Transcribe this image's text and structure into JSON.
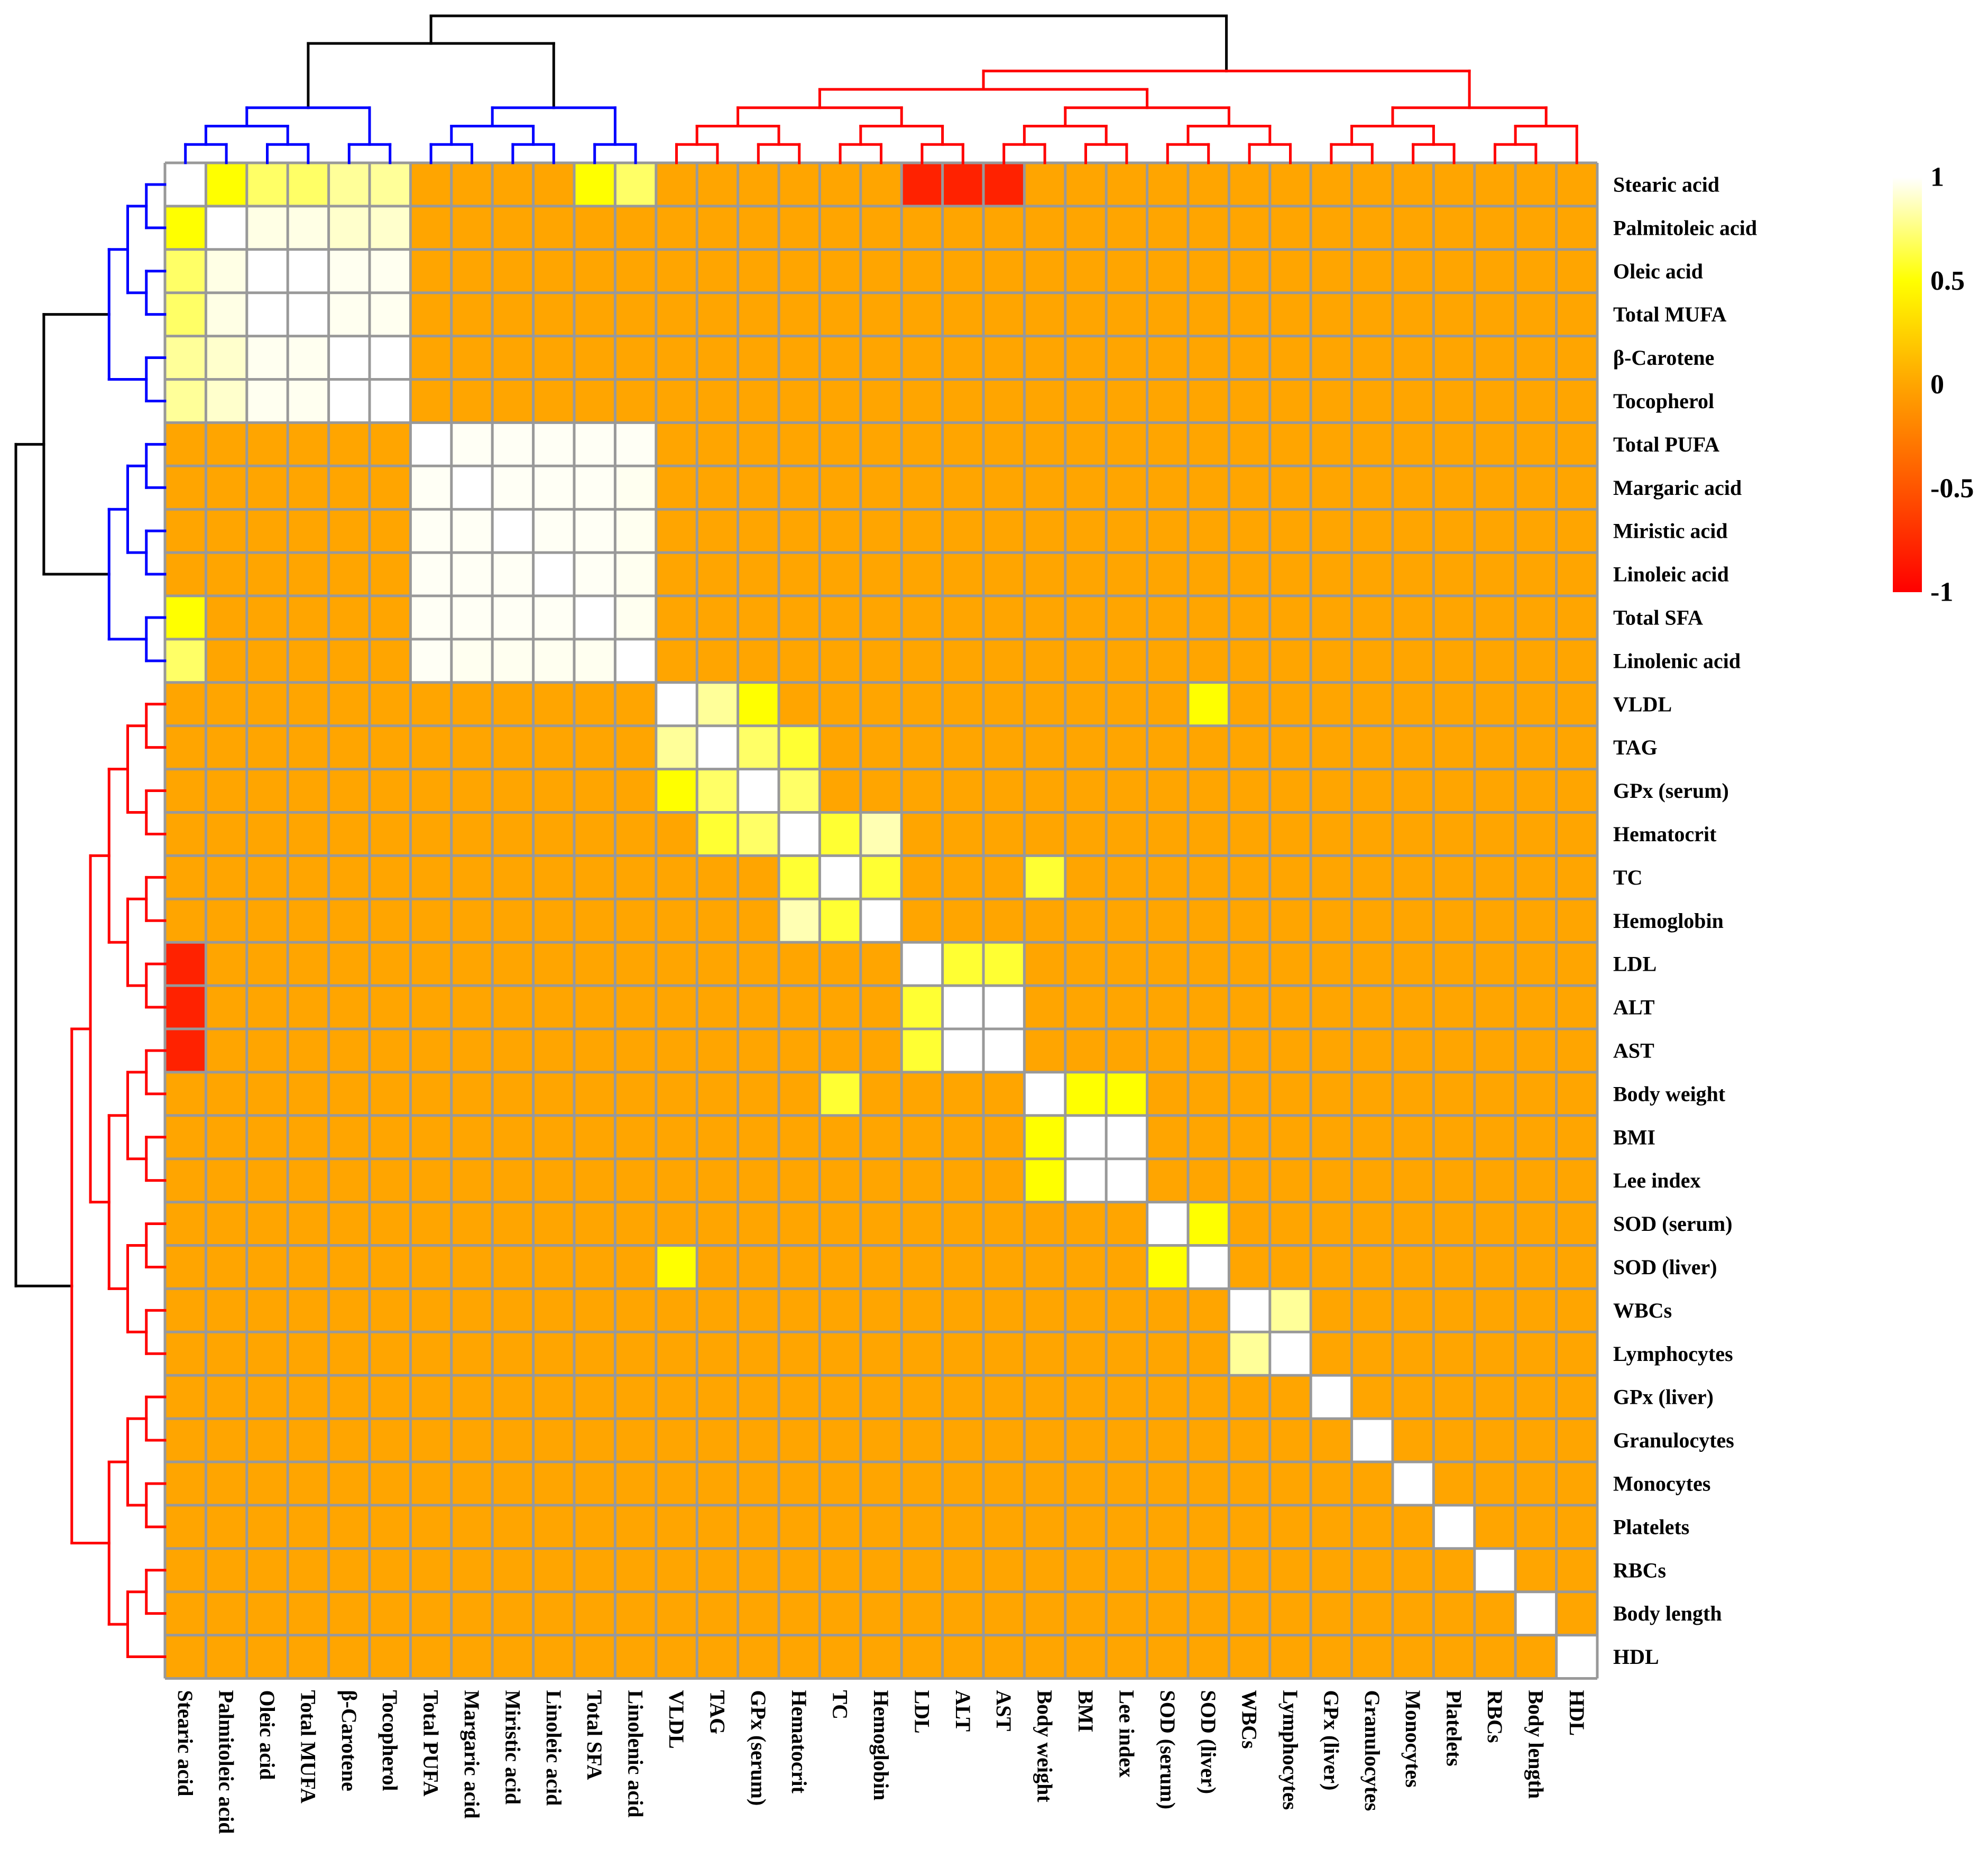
{
  "chart_data": {
    "type": "heatmap",
    "title": "",
    "variables": [
      "Stearic acid",
      "Palmitoleic acid",
      "Oleic acid",
      "Total MUFA",
      "β-Carotene",
      "Tocopherol",
      "Total PUFA",
      "Margaric acid",
      "Miristic acid",
      "Linoleic acid",
      "Total SFA",
      "Linolenic acid",
      "VLDL",
      "TAG",
      "GPx (serum)",
      "Hematocrit",
      "TC",
      "Hemoglobin",
      "LDL",
      "ALT",
      "AST",
      "Body weight",
      "BMI",
      "Lee index",
      "SOD (serum)",
      "SOD (liver)",
      "WBCs",
      "Lymphocytes",
      "GPx (liver)",
      "Granulocytes",
      "Monocytes",
      "Platelets",
      "RBCs",
      "Body length",
      "HDL"
    ],
    "default_value": 0,
    "correlations": [
      [
        "Stearic acid",
        "Palmitoleic acid",
        0.5
      ],
      [
        "Stearic acid",
        "Oleic acid",
        0.7
      ],
      [
        "Stearic acid",
        "Total MUFA",
        0.7
      ],
      [
        "Stearic acid",
        "β-Carotene",
        0.8
      ],
      [
        "Stearic acid",
        "Tocopherol",
        0.8
      ],
      [
        "Stearic acid",
        "Total SFA",
        0.5
      ],
      [
        "Stearic acid",
        "Linolenic acid",
        0.7
      ],
      [
        "Stearic acid",
        "LDL",
        -0.8
      ],
      [
        "Stearic acid",
        "ALT",
        -0.8
      ],
      [
        "Stearic acid",
        "AST",
        -0.8
      ],
      [
        "Palmitoleic acid",
        "Oleic acid",
        0.95
      ],
      [
        "Palmitoleic acid",
        "Total MUFA",
        0.95
      ],
      [
        "Palmitoleic acid",
        "β-Carotene",
        0.9
      ],
      [
        "Palmitoleic acid",
        "Tocopherol",
        0.9
      ],
      [
        "Oleic acid",
        "Total MUFA",
        1
      ],
      [
        "Oleic acid",
        "β-Carotene",
        0.97
      ],
      [
        "Oleic acid",
        "Tocopherol",
        0.97
      ],
      [
        "Total MUFA",
        "β-Carotene",
        0.97
      ],
      [
        "Total MUFA",
        "Tocopherol",
        0.97
      ],
      [
        "β-Carotene",
        "Tocopherol",
        1
      ],
      [
        "Total PUFA",
        "Margaric acid",
        0.98
      ],
      [
        "Total PUFA",
        "Miristic acid",
        0.98
      ],
      [
        "Total PUFA",
        "Linoleic acid",
        0.98
      ],
      [
        "Total PUFA",
        "Total SFA",
        0.98
      ],
      [
        "Total PUFA",
        "Linolenic acid",
        0.98
      ],
      [
        "Margaric acid",
        "Miristic acid",
        0.98
      ],
      [
        "Margaric acid",
        "Linoleic acid",
        0.98
      ],
      [
        "Margaric acid",
        "Total SFA",
        0.98
      ],
      [
        "Margaric acid",
        "Linolenic acid",
        0.97
      ],
      [
        "Miristic acid",
        "Linoleic acid",
        0.98
      ],
      [
        "Miristic acid",
        "Total SFA",
        0.98
      ],
      [
        "Miristic acid",
        "Linolenic acid",
        0.97
      ],
      [
        "Linoleic acid",
        "Total SFA",
        0.98
      ],
      [
        "Linoleic acid",
        "Linolenic acid",
        0.97
      ],
      [
        "Total SFA",
        "Linolenic acid",
        0.97
      ],
      [
        "VLDL",
        "TAG",
        0.8
      ],
      [
        "VLDL",
        "GPx (serum)",
        0.5
      ],
      [
        "VLDL",
        "SOD (liver)",
        0.5
      ],
      [
        "TAG",
        "GPx (serum)",
        0.7
      ],
      [
        "TAG",
        "Hematocrit",
        0.6
      ],
      [
        "GPx (serum)",
        "Hematocrit",
        0.7
      ],
      [
        "Hematocrit",
        "TC",
        0.6
      ],
      [
        "Hematocrit",
        "Hemoglobin",
        0.85
      ],
      [
        "TC",
        "Hemoglobin",
        0.6
      ],
      [
        "TC",
        "Body weight",
        0.6
      ],
      [
        "LDL",
        "ALT",
        0.6
      ],
      [
        "LDL",
        "AST",
        0.6
      ],
      [
        "ALT",
        "AST",
        1
      ],
      [
        "Body weight",
        "BMI",
        0.5
      ],
      [
        "Body weight",
        "Lee index",
        0.5
      ],
      [
        "BMI",
        "Lee index",
        1
      ],
      [
        "SOD (serum)",
        "SOD (liver)",
        0.5
      ],
      [
        "WBCs",
        "Lymphocytes",
        0.8
      ]
    ],
    "color_scale": {
      "stops": [
        [
          -1,
          "#ff0000"
        ],
        [
          -0.5,
          "#ff5500"
        ],
        [
          0,
          "#ffa500"
        ],
        [
          0.5,
          "#ffff00"
        ],
        [
          1,
          "#ffffff"
        ]
      ],
      "ticks": [
        "1",
        "0.5",
        "0",
        "-0.5",
        "-1"
      ],
      "tick_values": [
        1,
        0.5,
        0,
        -0.5,
        -1
      ]
    },
    "dendrogram_clusters": [
      {
        "members": 6,
        "color": "#0000ff"
      },
      {
        "members": 6,
        "color": "#0000ff"
      },
      {
        "members": 23,
        "color": "#ff0000"
      }
    ],
    "dendrogram_root_color": "#000000",
    "grid_color": "#999999"
  }
}
